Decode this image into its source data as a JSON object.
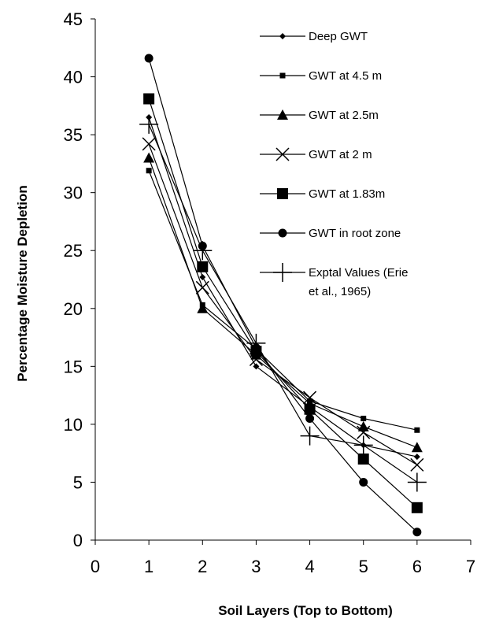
{
  "chart_data": {
    "type": "line",
    "title": "",
    "xlabel": "Soil Layers (Top to Bottom)",
    "ylabel": "Percentage Moisture Depletion",
    "xlim": [
      0,
      7
    ],
    "ylim": [
      0,
      45
    ],
    "xticks": [
      0,
      1,
      2,
      3,
      4,
      5,
      6,
      7
    ],
    "yticks": [
      0,
      5,
      10,
      15,
      20,
      25,
      30,
      35,
      40,
      45
    ],
    "grid": false,
    "legend_position": "top-right",
    "series": [
      {
        "name": "Deep GWT",
        "marker": "diamond-small",
        "x": [
          1,
          2,
          3,
          4,
          5,
          6
        ],
        "y": [
          36.5,
          22.7,
          15.0,
          11.5,
          8.2,
          7.2
        ]
      },
      {
        "name": "GWT at 4.5 m",
        "marker": "square-small",
        "x": [
          1,
          2,
          3,
          4,
          5,
          6
        ],
        "y": [
          31.9,
          20.3,
          16.5,
          12.0,
          10.5,
          9.5
        ]
      },
      {
        "name": "GWT at 2.5m",
        "marker": "triangle",
        "x": [
          1,
          2,
          3,
          4,
          5,
          6
        ],
        "y": [
          33.0,
          20.0,
          16.0,
          11.8,
          9.8,
          8.0
        ]
      },
      {
        "name": "GWT at 2 m",
        "marker": "x",
        "x": [
          1,
          2,
          3,
          4,
          5,
          6
        ],
        "y": [
          34.2,
          21.8,
          15.6,
          12.3,
          9.3,
          6.5
        ]
      },
      {
        "name": "GWT at 1.83m",
        "marker": "square-large",
        "x": [
          1,
          2,
          3,
          4,
          5,
          6
        ],
        "y": [
          38.1,
          23.6,
          16.3,
          11.3,
          7.0,
          2.8
        ]
      },
      {
        "name": "GWT in  root zone",
        "marker": "circle",
        "x": [
          1,
          2,
          3,
          4,
          5,
          6
        ],
        "y": [
          41.6,
          25.4,
          16.6,
          10.5,
          5.0,
          0.7
        ]
      },
      {
        "name": "Exptal Values (Erie et al., 1965)",
        "legend_lines": [
          "Exptal Values (Erie",
          "et al., 1965)"
        ],
        "marker": "plus",
        "x": [
          1,
          2,
          3,
          4,
          5,
          6
        ],
        "y": [
          35.9,
          25.0,
          17.0,
          9.0,
          8.2,
          5.0
        ]
      }
    ]
  }
}
